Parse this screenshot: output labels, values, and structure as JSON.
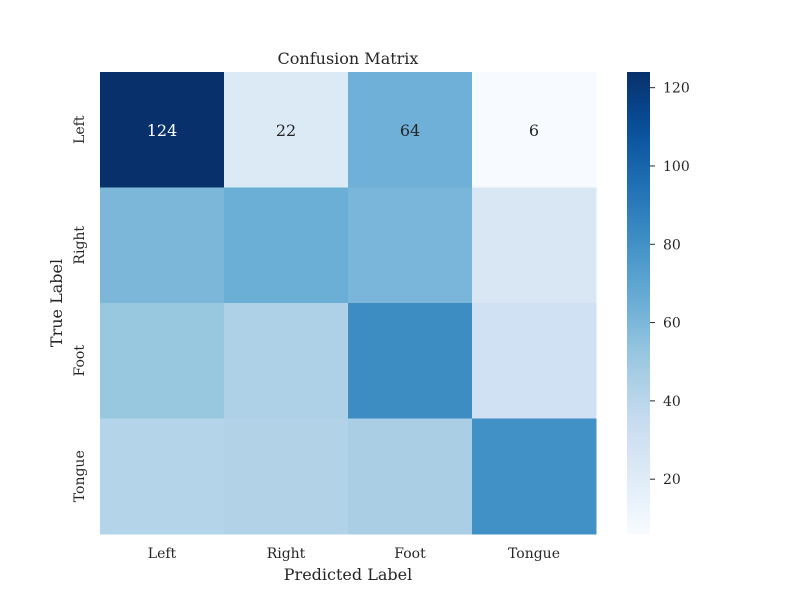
{
  "chart_data": {
    "type": "heatmap",
    "title": "Confusion Matrix",
    "xlabel": "Predicted Label",
    "ylabel": "True Label",
    "x_categories": [
      "Left",
      "Right",
      "Foot",
      "Tongue"
    ],
    "y_categories": [
      "Left",
      "Right",
      "Foot",
      "Tongue"
    ],
    "values": [
      [
        124,
        22,
        64,
        6
      ],
      [
        60,
        65,
        61,
        24
      ],
      [
        52,
        44,
        82,
        30
      ],
      [
        42,
        43,
        46,
        80
      ]
    ],
    "annotated_row_index": 0,
    "colormap": "Blues",
    "vmin": 6,
    "vmax": 124,
    "colorbar_ticks": [
      20,
      40,
      60,
      80,
      100,
      120
    ],
    "grid": false
  }
}
